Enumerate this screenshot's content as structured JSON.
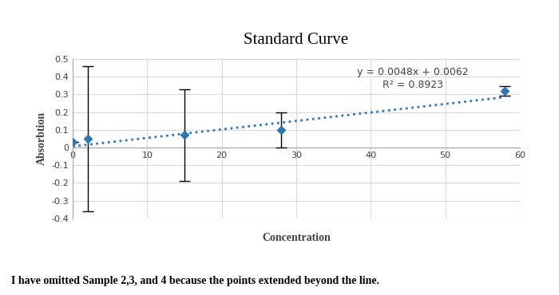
{
  "chart_data": {
    "type": "scatter",
    "title": "Standard Curve",
    "x_label": "Concentration",
    "y_label": "Absorbtion",
    "x": [
      0,
      2,
      15,
      28,
      58
    ],
    "values": [
      0.03,
      0.05,
      0.07,
      0.1,
      0.32
    ],
    "error": [
      0,
      0.41,
      0.26,
      0.1,
      0.025
    ],
    "color": "#2e75b6",
    "marker": "diamond",
    "xlim": [
      0,
      60
    ],
    "xticks": [
      0,
      10,
      20,
      30,
      40,
      50,
      60
    ],
    "ylim": [
      -0.4,
      0.5
    ],
    "yticks": [
      -0.4,
      -0.3,
      -0.2,
      -0.1,
      0,
      0.1,
      0.2,
      0.3,
      0.4,
      0.5
    ],
    "grid": true,
    "trendline": {
      "slope": 0.0048,
      "intercept": 0.0062,
      "line_style": "dotted",
      "equation": "y = 0.0048x + 0.0062",
      "r2": "R² = 0.8923"
    },
    "annotations": [
      "I have omitted Sample 2,3, and 4 because the points extended beyond the line."
    ]
  }
}
